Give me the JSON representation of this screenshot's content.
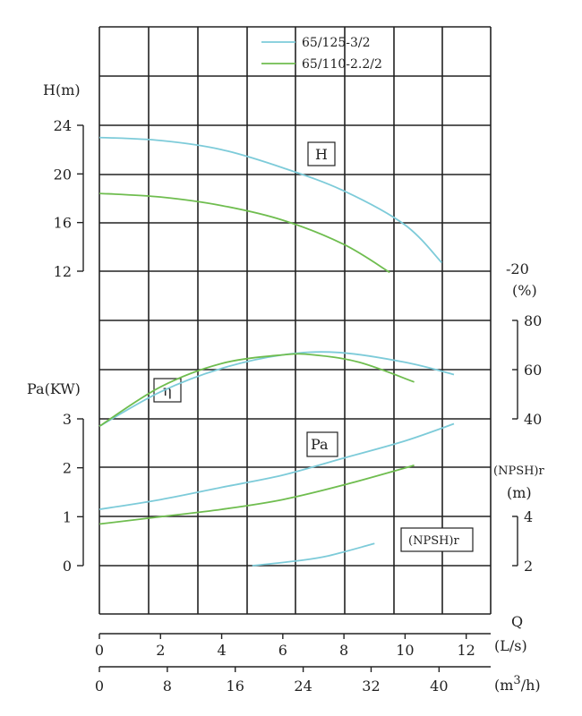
{
  "chart_data": {
    "type": "line",
    "legend": {
      "placement": "top",
      "entries": [
        {
          "label": "65/125-3/2",
          "color": "#7dcbd9"
        },
        {
          "label": "65/110-2.2/2",
          "color": "#6fbd4f"
        }
      ]
    },
    "x_axes": {
      "primary": {
        "label": "Q",
        "unit": "(L/s)",
        "ticks": [
          "0",
          "2",
          "4",
          "6",
          "8",
          "10",
          "12"
        ],
        "range": [
          0,
          12.8
        ]
      },
      "secondary": {
        "unit": "(m3/h)",
        "unit_base": "(m",
        "unit_exp": "3",
        "unit_tail": "/h)",
        "ticks": [
          "0",
          "8",
          "16",
          "24",
          "32",
          "40"
        ]
      }
    },
    "panels": {
      "head": {
        "label": "H(m)",
        "ticks": [
          "24",
          "20",
          "16",
          "12"
        ],
        "range": [
          12,
          24
        ],
        "tag": "H"
      },
      "efficiency": {
        "label": "η",
        "unit_label": "(%)",
        "ticks": [
          "80",
          "60",
          "40"
        ],
        "top_tick": "-20",
        "range": [
          40,
          80
        ],
        "tag": "η"
      },
      "power": {
        "label": "Pa(KW)",
        "ticks": [
          "3",
          "2",
          "1",
          "0"
        ],
        "range": [
          0,
          3
        ],
        "tag": "Pa"
      },
      "npsh": {
        "label_top": "(NPSH)r",
        "label_unit": "(m)",
        "ticks": [
          "4",
          "2"
        ],
        "range": [
          2,
          4
        ],
        "tag": "(NPSH)r"
      }
    },
    "series": [
      {
        "name": "65/125-3/2",
        "color": "#7dcbd9",
        "head": [
          [
            0,
            23
          ],
          [
            2,
            22.75
          ],
          [
            4,
            22
          ],
          [
            6,
            20.5
          ],
          [
            8,
            18.6
          ],
          [
            10,
            15.8
          ],
          [
            11.2,
            12.7
          ]
        ],
        "efficiency": [
          [
            0,
            37
          ],
          [
            2,
            51
          ],
          [
            4,
            60.5
          ],
          [
            6,
            66
          ],
          [
            7.8,
            67
          ],
          [
            10,
            63
          ],
          [
            11.6,
            58
          ]
        ],
        "power": [
          [
            0,
            1.15
          ],
          [
            2,
            1.35
          ],
          [
            4,
            1.6
          ],
          [
            6,
            1.85
          ],
          [
            8,
            2.2
          ],
          [
            10,
            2.55
          ],
          [
            11.6,
            2.9
          ]
        ],
        "npsh": [
          [
            5,
            2.0
          ],
          [
            6.5,
            2.2
          ],
          [
            7.5,
            2.4
          ],
          [
            9,
            2.9
          ]
        ]
      },
      {
        "name": "65/110-2.2/2",
        "color": "#6fbd4f",
        "head": [
          [
            0,
            18.4
          ],
          [
            2,
            18.1
          ],
          [
            4,
            17.4
          ],
          [
            6,
            16.2
          ],
          [
            8,
            14.2
          ],
          [
            9.5,
            11.9
          ]
        ],
        "efficiency": [
          [
            0,
            37
          ],
          [
            2,
            53
          ],
          [
            4,
            62.5
          ],
          [
            6,
            66
          ],
          [
            7,
            66
          ],
          [
            8.5,
            63
          ],
          [
            10.3,
            55
          ]
        ],
        "power": [
          [
            0,
            0.85
          ],
          [
            2,
            1.0
          ],
          [
            4,
            1.15
          ],
          [
            6,
            1.35
          ],
          [
            8,
            1.65
          ],
          [
            10.3,
            2.05
          ]
        ]
      }
    ],
    "grid": true
  }
}
